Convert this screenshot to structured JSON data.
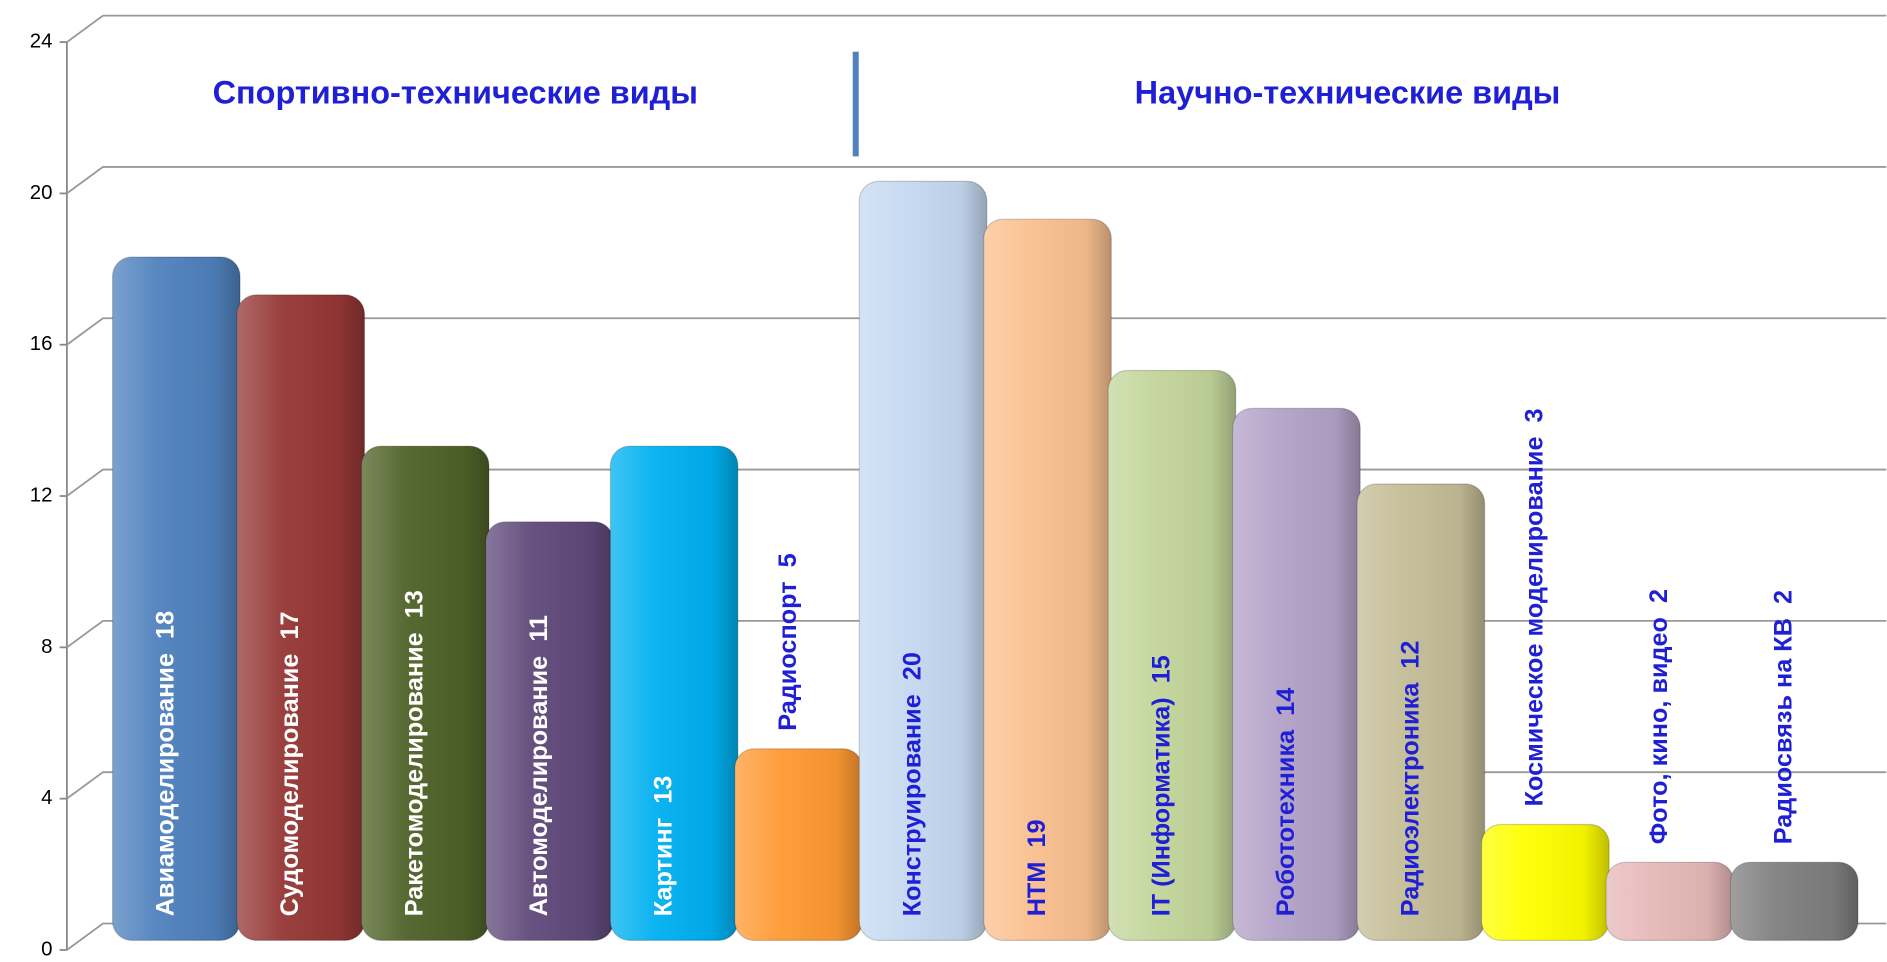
{
  "chart_data": {
    "type": "bar",
    "annotations": [
      "Спортивно-технические виды",
      "Научно-технические виды"
    ],
    "categories": [
      "Авиамоделирование",
      "Судомоделирование",
      "Ракетомоделирование",
      "Автомоделирование",
      "Картинг",
      "Радиоспорт",
      "Конструирование",
      "НТМ",
      "IT (Информатика)",
      "Робототехника",
      "Радиоэлектроника",
      "Космическое моделирование",
      "Фото, кино, видео",
      "Радиосвязь на КВ"
    ],
    "values": [
      18,
      17,
      13,
      11,
      13,
      5,
      20,
      19,
      15,
      14,
      12,
      3,
      2,
      2
    ],
    "colors": [
      "#4f81bd",
      "#953735",
      "#4f6228",
      "#5f497a",
      "#00b0f0",
      "#ff9933",
      "#c6d9f1",
      "#fac090",
      "#c3d69b",
      "#b3a2c7",
      "#c4bd97",
      "#ffff00",
      "#e6b9b8",
      "#7f7f7f"
    ],
    "label_colors": [
      "#ffffff",
      "#ffffff",
      "#ffffff",
      "#ffffff",
      "#ffffff",
      "#1f1fd6",
      "#1f1fd6",
      "#1f1fd6",
      "#1f1fd6",
      "#1f1fd6",
      "#1f1fd6",
      "#1f1fd6",
      "#1f1fd6",
      "#1f1fd6"
    ],
    "ylim": [
      0,
      24
    ],
    "yticks": [
      0,
      4,
      8,
      12,
      16,
      20,
      24
    ],
    "grid": true
  }
}
